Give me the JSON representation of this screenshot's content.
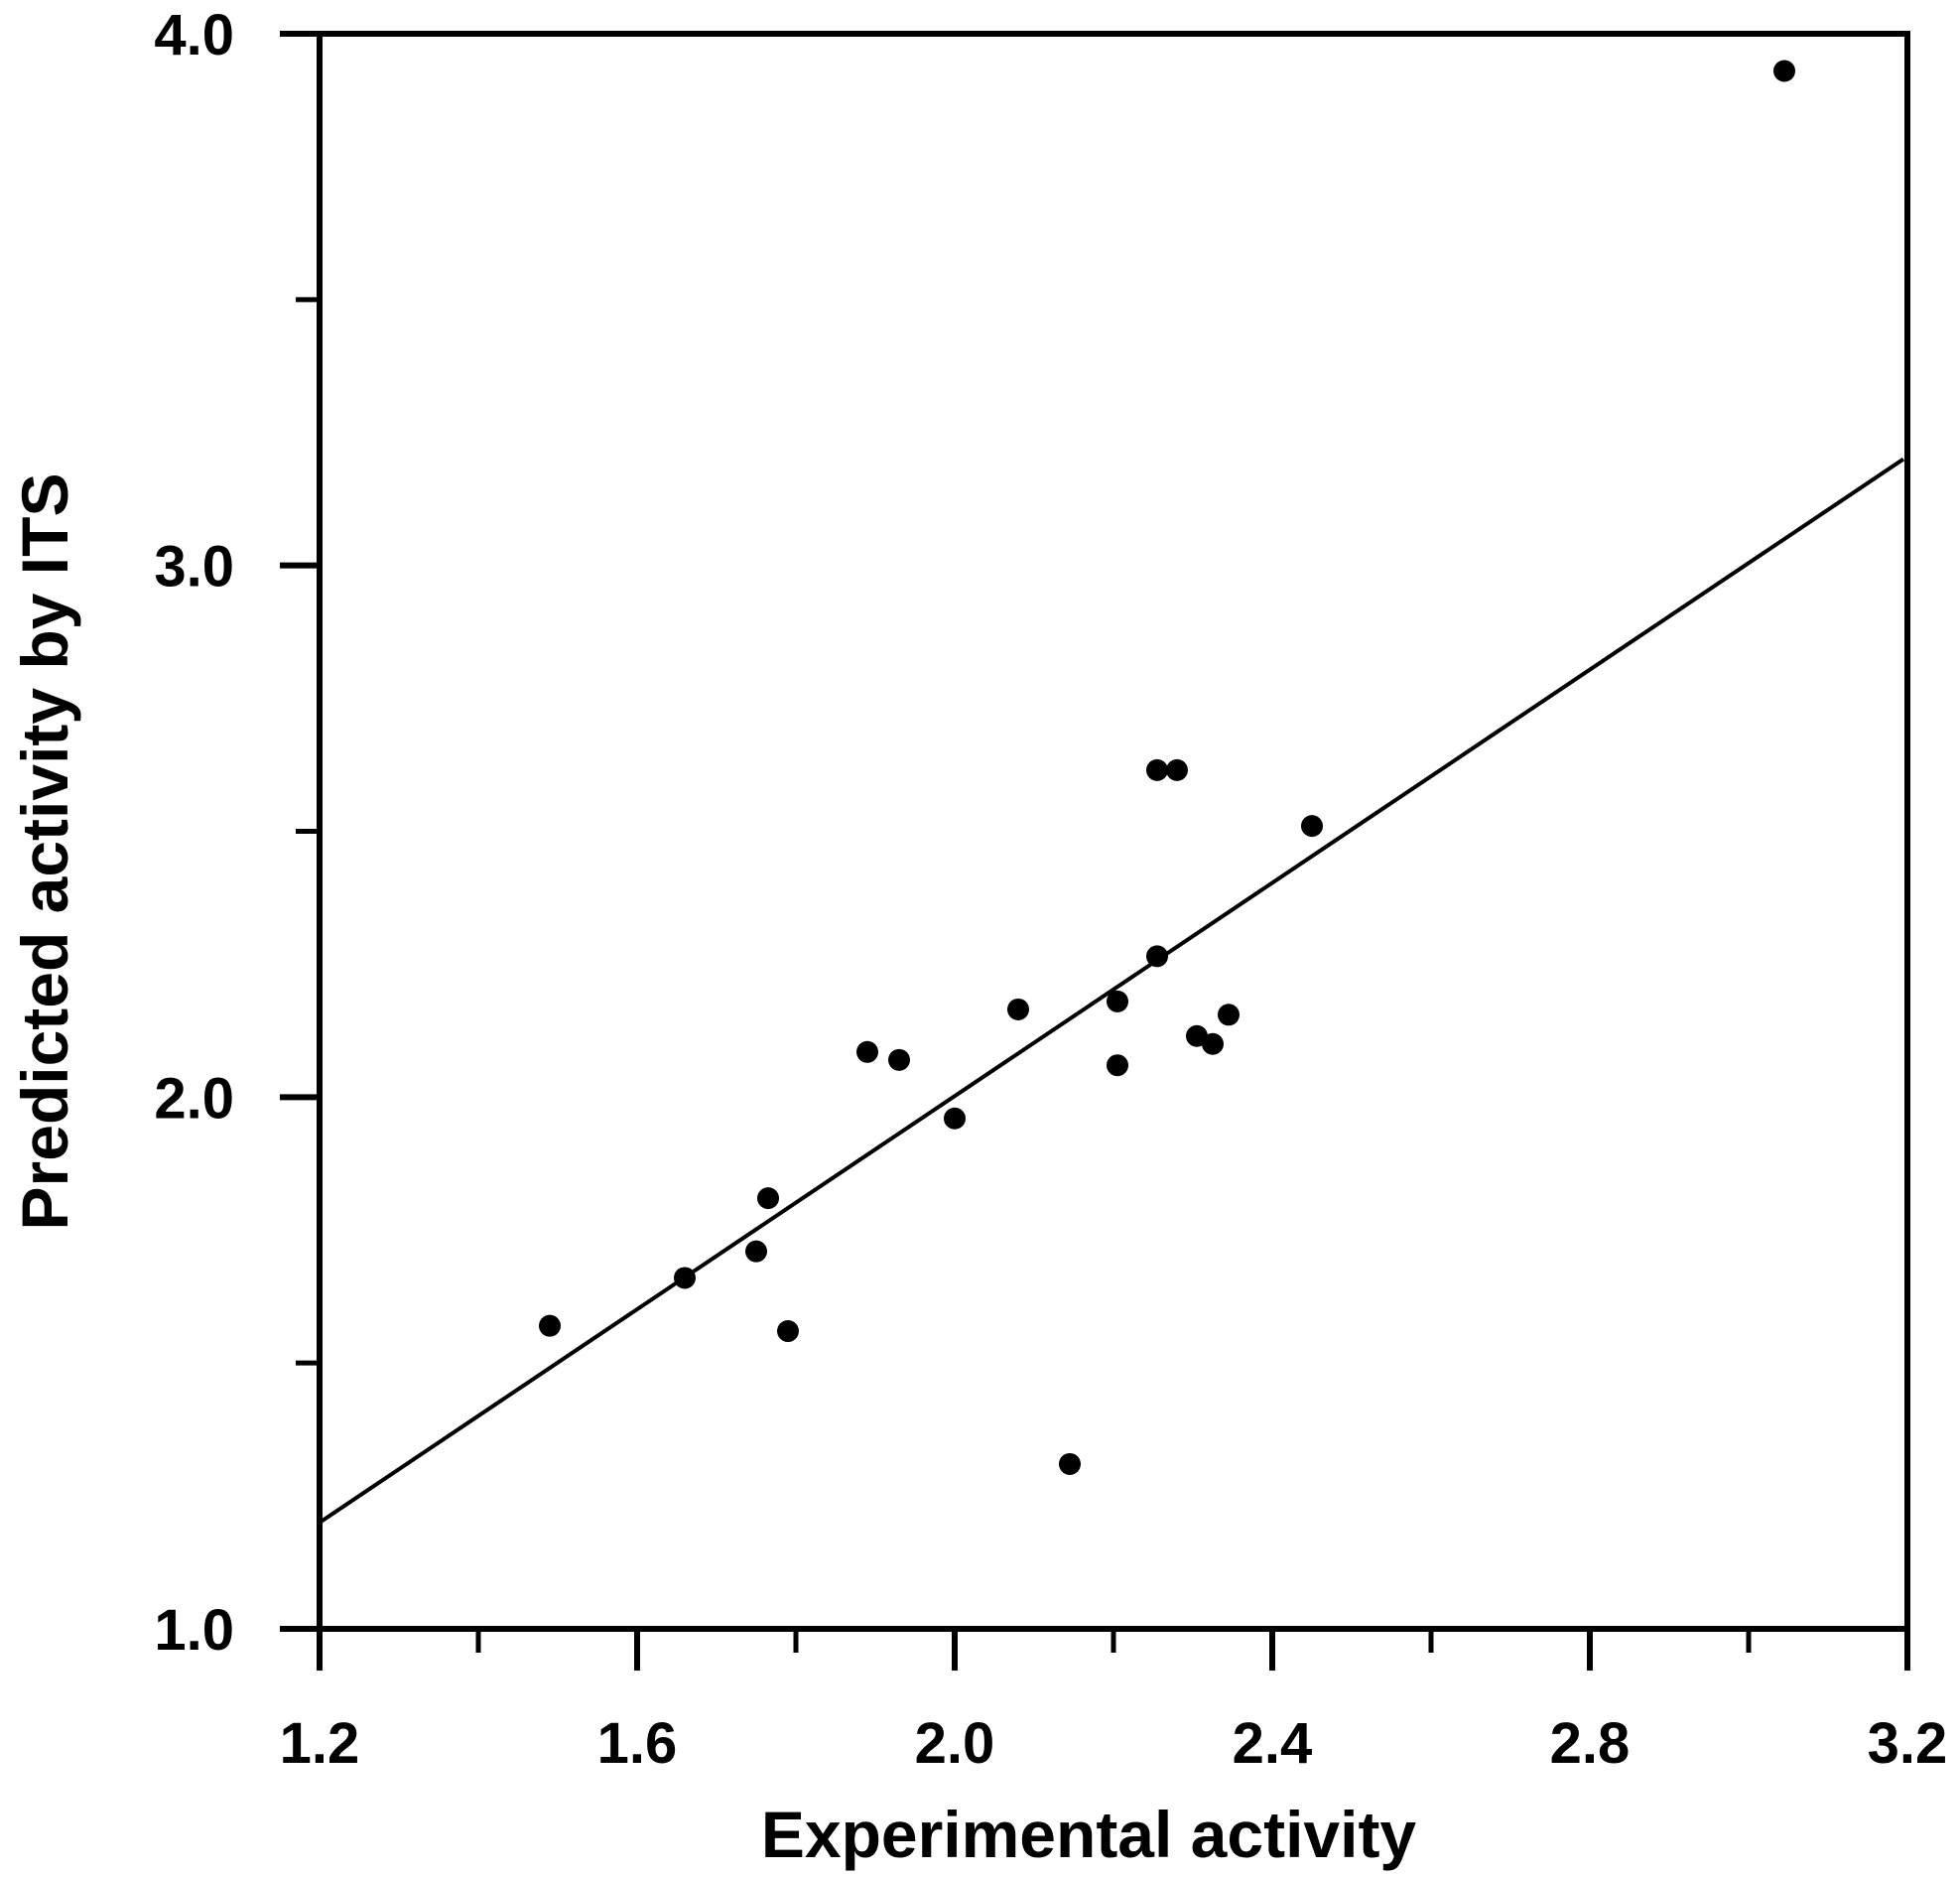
{
  "chart_data": {
    "type": "scatter",
    "xlabel": "Experimental activity",
    "ylabel": "Predicted activity by ITS",
    "xlim": [
      1.2,
      3.2
    ],
    "ylim": [
      1.0,
      4.0
    ],
    "x_ticks": [
      1.2,
      1.6,
      2.0,
      2.4,
      2.8,
      3.2
    ],
    "x_tick_labels": [
      "1.2",
      "1.6",
      "2.0",
      "2.4",
      "2.8",
      "3.2"
    ],
    "x_minor_ticks": [
      1.4,
      1.8,
      2.2,
      2.6,
      3.0
    ],
    "y_ticks": [
      1.0,
      2.0,
      3.0,
      4.0
    ],
    "y_tick_labels": [
      "1.0",
      "2.0",
      "3.0",
      "4.0"
    ],
    "y_minor_ticks": [
      1.5,
      2.5,
      3.5
    ],
    "grid": false,
    "points": [
      {
        "x": 1.49,
        "y": 1.57
      },
      {
        "x": 1.66,
        "y": 1.66
      },
      {
        "x": 1.75,
        "y": 1.71
      },
      {
        "x": 1.765,
        "y": 1.81
      },
      {
        "x": 1.79,
        "y": 1.56
      },
      {
        "x": 1.89,
        "y": 2.085
      },
      {
        "x": 1.93,
        "y": 2.07
      },
      {
        "x": 2.0,
        "y": 1.96
      },
      {
        "x": 2.08,
        "y": 2.165
      },
      {
        "x": 2.145,
        "y": 1.31
      },
      {
        "x": 2.205,
        "y": 2.18
      },
      {
        "x": 2.205,
        "y": 2.06
      },
      {
        "x": 2.255,
        "y": 2.615
      },
      {
        "x": 2.28,
        "y": 2.615
      },
      {
        "x": 2.255,
        "y": 2.265
      },
      {
        "x": 2.305,
        "y": 2.115
      },
      {
        "x": 2.325,
        "y": 2.1
      },
      {
        "x": 2.345,
        "y": 2.155
      },
      {
        "x": 2.45,
        "y": 2.51
      },
      {
        "x": 3.045,
        "y": 3.93
      }
    ],
    "fit_line": {
      "x": [
        1.2,
        3.195
      ],
      "y": [
        1.2,
        3.2
      ]
    }
  }
}
